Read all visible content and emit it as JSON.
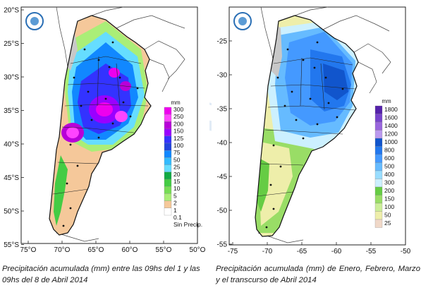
{
  "maps": [
    {
      "id": "left",
      "lat_labels": [
        "20°S",
        "25°S",
        "30°S",
        "35°S",
        "40°S",
        "45°S",
        "50°S",
        "55°S"
      ],
      "lon_labels": [
        "75°O",
        "70°O",
        "65°O",
        "60°O",
        "55°O",
        "50°O"
      ],
      "legend": {
        "unit": "mm",
        "colors": [
          "#ee00ee",
          "#ff44ff",
          "#b800d8",
          "#9a00ff",
          "#3333ff",
          "#2244dd",
          "#1188ff",
          "#33bbff",
          "#66ddff",
          "#11aa44",
          "#44cc44",
          "#77dd55",
          "#aaee77",
          "#f5c89a",
          "#ffffff"
        ],
        "labels": [
          "300",
          "250",
          "200",
          "150",
          "125",
          "100",
          "75",
          "50",
          "25",
          "20",
          "15",
          "10",
          "5",
          "2",
          "1",
          "0.1",
          "Sin Precip."
        ]
      },
      "caption": "Precipitación acumulada (mm) entre las 09hs del 1 y las 09hs del 8 de Abril 2014"
    },
    {
      "id": "right",
      "lat_labels": [
        "-25",
        "-30",
        "-35",
        "-40",
        "-45",
        "-50",
        "-55"
      ],
      "lon_labels": [
        "-75",
        "-70",
        "-65",
        "-60",
        "-55",
        "-50"
      ],
      "legend": {
        "unit": "mm",
        "colors": [
          "#5522aa",
          "#7744cc",
          "#9966dd",
          "#bb99ee",
          "#1155cc",
          "#2277ee",
          "#4499ff",
          "#66bbff",
          "#99ddff",
          "#ccf0ff",
          "#66cc44",
          "#99dd66",
          "#ccee99",
          "#eeeeaa",
          "#f0d8c8"
        ],
        "labels": [
          "1800",
          "1600",
          "1400",
          "1200",
          "1000",
          "800",
          "600",
          "500",
          "400",
          "300",
          "200",
          "150",
          "100",
          "50",
          "25"
        ]
      },
      "caption": "Precipitación acumulada (mm) de Enero, Febrero, Marzo y el transcurso de Abril 2014"
    }
  ]
}
